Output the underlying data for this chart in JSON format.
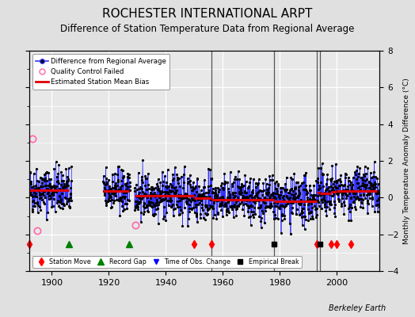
{
  "title": "ROCHESTER INTERNATIONAL ARPT",
  "subtitle": "Difference of Station Temperature Data from Regional Average",
  "ylabel": "Monthly Temperature Anomaly Difference (°C)",
  "xlabel_ticks": [
    1900,
    1920,
    1940,
    1960,
    1980,
    2000
  ],
  "ylim": [
    -4,
    8
  ],
  "yticks": [
    -4,
    -2,
    0,
    2,
    4,
    6,
    8
  ],
  "xlim": [
    1892,
    2015
  ],
  "bg_color": "#e0e0e0",
  "plot_bg_color": "#e8e8e8",
  "grid_color": "#ffffff",
  "line_color": "#3333ff",
  "dot_color": "#000000",
  "bias_color": "#dd0000",
  "title_fontsize": 11,
  "subtitle_fontsize": 8.5,
  "seed": 42,
  "station_moves": [
    1892,
    1950,
    1956,
    1993,
    1998,
    2000,
    2005
  ],
  "record_gaps": [
    1906,
    1927
  ],
  "obs_changes": [],
  "empirical_breaks": [
    1978,
    1994
  ],
  "qc_fail_times": [
    1893.3,
    1894.8,
    1929.3
  ],
  "qc_fail_vals": [
    3.2,
    -1.8,
    -1.5
  ],
  "segment_biases": [
    {
      "start": 1892,
      "end": 1906,
      "bias": 0.42
    },
    {
      "start": 1918,
      "end": 1927,
      "bias": 0.35
    },
    {
      "start": 1929,
      "end": 1950,
      "bias": 0.12
    },
    {
      "start": 1950,
      "end": 1956,
      "bias": -0.05
    },
    {
      "start": 1956,
      "end": 1978,
      "bias": -0.12
    },
    {
      "start": 1978,
      "end": 1993,
      "bias": -0.18
    },
    {
      "start": 1993,
      "end": 1994,
      "bias": 0.28
    },
    {
      "start": 1994,
      "end": 1998,
      "bias": 0.25
    },
    {
      "start": 1998,
      "end": 2000,
      "bias": 0.3
    },
    {
      "start": 2000,
      "end": 2005,
      "bias": 0.35
    },
    {
      "start": 2005,
      "end": 2014,
      "bias": 0.35
    }
  ],
  "vertical_lines": [
    1956,
    1978,
    1993,
    1994
  ],
  "vertical_line_color": "#555555",
  "marker_y": -2.55,
  "watermark": "Berkeley Earth"
}
